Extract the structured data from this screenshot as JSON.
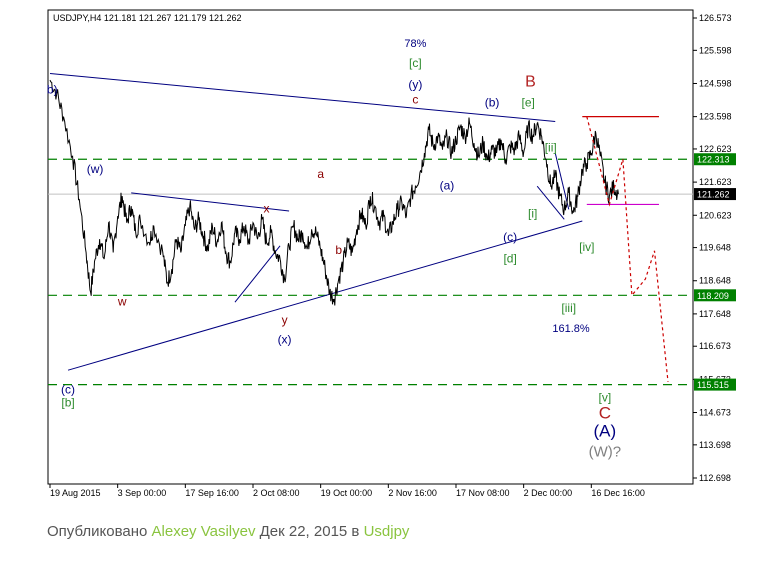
{
  "chart_data": {
    "type": "line",
    "title": "USDJPY,H4  121.181 121.267 121.179 121.262",
    "instrument": "USDJPY",
    "timeframe": "H4",
    "ohlc": {
      "open": 121.181,
      "high": 121.267,
      "low": 121.179,
      "close": 121.262
    },
    "ylim": [
      112.698,
      126.573
    ],
    "y_ticks": [
      "126.573",
      "125.598",
      "124.598",
      "123.598",
      "122.623",
      "121.623",
      "120.623",
      "119.648",
      "118.648",
      "117.648",
      "116.673",
      "115.673",
      "114.673",
      "113.698",
      "112.698"
    ],
    "x_ticks": [
      "19 Aug 2015",
      "3 Sep 00:00",
      "17 Sep 16:00",
      "2 Oct 08:00",
      "19 Oct 00:00",
      "2 Nov 16:00",
      "17 Nov 08:00",
      "2 Dec 00:00",
      "16 Dec 16:00"
    ],
    "current_price": "121.262",
    "levels": [
      {
        "label": "122.313",
        "value": 122.313
      },
      {
        "label": "118.209",
        "value": 118.209
      },
      {
        "label": "115.515",
        "value": 115.515
      }
    ],
    "series": [
      {
        "values": [
          [
            0,
            124.7
          ],
          [
            1.5,
            124.3
          ],
          [
            3,
            123.6
          ],
          [
            5,
            122.4
          ],
          [
            6.5,
            121.1
          ],
          [
            8,
            119.5
          ],
          [
            9,
            118.3
          ],
          [
            10,
            119.3
          ],
          [
            11,
            119.9
          ],
          [
            12,
            119.3
          ],
          [
            13,
            120.4
          ],
          [
            14,
            119.5
          ],
          [
            15,
            120.6
          ],
          [
            16,
            121.2
          ],
          [
            17,
            120.4
          ],
          [
            18,
            120.9
          ],
          [
            19,
            120.1
          ],
          [
            20,
            120.5
          ],
          [
            22,
            119.8
          ],
          [
            23,
            120.3
          ],
          [
            25,
            119.5
          ],
          [
            26,
            118.6
          ],
          [
            27,
            119.0
          ],
          [
            28,
            119.9
          ],
          [
            29,
            119.5
          ],
          [
            30,
            120.3
          ],
          [
            31,
            120.9
          ],
          [
            32,
            120.2
          ],
          [
            33,
            120.5
          ],
          [
            34,
            120.0
          ],
          [
            35,
            119.6
          ],
          [
            36,
            120.3
          ],
          [
            37,
            119.8
          ],
          [
            38,
            120.4
          ],
          [
            39,
            119.5
          ],
          [
            40,
            119.2
          ],
          [
            41,
            120.1
          ],
          [
            42,
            119.9
          ],
          [
            43,
            120.3
          ],
          [
            44,
            119.8
          ],
          [
            45,
            120.4
          ],
          [
            46,
            119.9
          ],
          [
            47,
            120.5
          ],
          [
            48,
            119.8
          ],
          [
            49,
            120.1
          ],
          [
            50,
            119.5
          ],
          [
            51,
            119.3
          ],
          [
            52,
            118.7
          ],
          [
            53,
            119.7
          ],
          [
            54,
            120.3
          ],
          [
            55,
            119.9
          ],
          [
            56,
            120.1
          ],
          [
            57,
            119.6
          ],
          [
            58,
            120.2
          ],
          [
            59,
            120.1
          ],
          [
            60,
            119.6
          ],
          [
            61,
            119.0
          ],
          [
            62,
            118.3
          ],
          [
            63,
            118.1
          ],
          [
            64,
            118.7
          ],
          [
            65,
            119.2
          ],
          [
            66,
            119.8
          ],
          [
            67,
            119.5
          ],
          [
            68,
            120.2
          ],
          [
            69,
            120.7
          ],
          [
            70,
            120.3
          ],
          [
            71,
            121.2
          ],
          [
            72,
            120.9
          ],
          [
            73,
            120.4
          ],
          [
            74,
            120.6
          ],
          [
            75,
            120.0
          ],
          [
            76,
            120.4
          ],
          [
            77,
            120.8
          ],
          [
            78,
            121.0
          ],
          [
            79,
            120.6
          ],
          [
            80,
            121.2
          ],
          [
            81,
            121.5
          ],
          [
            82,
            121.9
          ],
          [
            83,
            122.5
          ],
          [
            84,
            123.2
          ],
          [
            85,
            122.7
          ],
          [
            86,
            123.0
          ],
          [
            87,
            122.6
          ],
          [
            88,
            123.0
          ],
          [
            89,
            122.5
          ],
          [
            90,
            122.9
          ],
          [
            91,
            123.3
          ],
          [
            92,
            123.0
          ],
          [
            93,
            123.4
          ],
          [
            94,
            122.8
          ],
          [
            95,
            122.4
          ],
          [
            96,
            122.8
          ],
          [
            97,
            122.3
          ],
          [
            98,
            122.6
          ],
          [
            99,
            122.5
          ],
          [
            100,
            122.9
          ],
          [
            101,
            122.3
          ],
          [
            102,
            122.7
          ],
          [
            103,
            122.6
          ],
          [
            104,
            123.0
          ],
          [
            105,
            122.5
          ],
          [
            106,
            123.3
          ],
          [
            107,
            123.0
          ],
          [
            108,
            123.4
          ],
          [
            109,
            123.0
          ],
          [
            110,
            122.3
          ],
          [
            111,
            121.5
          ],
          [
            112,
            121.8
          ],
          [
            113,
            121.2
          ],
          [
            114,
            120.8
          ],
          [
            115,
            121.3
          ],
          [
            116,
            120.7
          ],
          [
            117,
            121.2
          ],
          [
            118,
            122.0
          ],
          [
            119,
            122.2
          ],
          [
            120,
            122.5
          ],
          [
            121,
            123.1
          ],
          [
            122,
            122.4
          ],
          [
            123,
            121.6
          ],
          [
            124,
            121.2
          ],
          [
            125,
            121.5
          ],
          [
            126,
            121.262
          ]
        ]
      }
    ],
    "trend_lines": [
      {
        "from": [
          0,
          124.9
        ],
        "to": [
          112,
          123.45
        ]
      },
      {
        "from": [
          4,
          115.95
        ],
        "to": [
          118,
          120.45
        ]
      },
      {
        "from": [
          18,
          121.3
        ],
        "to": [
          53,
          120.75
        ]
      },
      {
        "from": [
          41,
          118.0
        ],
        "to": [
          51,
          119.7
        ]
      },
      {
        "from": [
          108,
          121.5
        ],
        "to": [
          114,
          120.5
        ]
      },
      {
        "from": [
          112,
          122.5
        ],
        "to": [
          115,
          120.8
        ]
      }
    ],
    "hlines": [
      {
        "from": [
          118,
          123.598
        ],
        "to": [
          135,
          123.598
        ],
        "color": "#cc0000"
      },
      {
        "from": [
          119,
          120.95
        ],
        "to": [
          135,
          120.95
        ],
        "color": "#cc00cc"
      }
    ],
    "projection": [
      [
        119,
        123.598
      ],
      [
        124,
        120.95
      ],
      [
        127,
        122.313
      ],
      [
        129,
        118.209
      ],
      [
        132,
        118.7
      ],
      [
        134,
        119.55
      ],
      [
        137,
        115.6
      ]
    ],
    "annotations": [
      {
        "text": "b)",
        "x": 0.5,
        "y": 124.3,
        "color": "#000080",
        "size": 12
      },
      {
        "text": "(w)",
        "x": 10,
        "y": 121.9,
        "color": "#000080",
        "size": 12
      },
      {
        "text": "w",
        "x": 16,
        "y": 117.9,
        "color": "#8b0000",
        "size": 12
      },
      {
        "text": "x",
        "x": 48,
        "y": 120.7,
        "color": "#8b0000",
        "size": 12
      },
      {
        "text": "y",
        "x": 52,
        "y": 117.35,
        "color": "#8b0000",
        "size": 12
      },
      {
        "text": "(x)",
        "x": 52,
        "y": 116.75,
        "color": "#000080",
        "size": 12
      },
      {
        "text": "a",
        "x": 60,
        "y": 121.75,
        "color": "#8b0000",
        "size": 12
      },
      {
        "text": "b",
        "x": 64,
        "y": 119.45,
        "color": "#8b0000",
        "size": 12
      },
      {
        "text": "78%",
        "x": 81,
        "y": 125.7,
        "color": "#000080",
        "size": 11
      },
      {
        "text": "[c]",
        "x": 81,
        "y": 125.1,
        "color": "#2e8b2e",
        "size": 12
      },
      {
        "text": "(y)",
        "x": 81,
        "y": 124.45,
        "color": "#000080",
        "size": 12
      },
      {
        "text": "c",
        "x": 81,
        "y": 124.0,
        "color": "#8b0000",
        "size": 12
      },
      {
        "text": "(a)",
        "x": 88,
        "y": 121.4,
        "color": "#000080",
        "size": 12
      },
      {
        "text": "(b)",
        "x": 98,
        "y": 123.9,
        "color": "#000080",
        "size": 12
      },
      {
        "text": "(c)",
        "x": 102,
        "y": 119.85,
        "color": "#000080",
        "size": 12
      },
      {
        "text": "[d]",
        "x": 102,
        "y": 119.2,
        "color": "#2e8b2e",
        "size": 12
      },
      {
        "text": "B",
        "x": 106.5,
        "y": 124.5,
        "color": "#b22222",
        "size": 16
      },
      {
        "text": "[e]",
        "x": 106,
        "y": 123.9,
        "color": "#2e8b2e",
        "size": 12
      },
      {
        "text": "[i]",
        "x": 107,
        "y": 120.55,
        "color": "#2e8b2e",
        "size": 12
      },
      {
        "text": "[ii]",
        "x": 111,
        "y": 122.55,
        "color": "#2e8b2e",
        "size": 12
      },
      {
        "text": "[iii]",
        "x": 115,
        "y": 117.7,
        "color": "#2e8b2e",
        "size": 12
      },
      {
        "text": "161.8%",
        "x": 115.5,
        "y": 117.1,
        "color": "#000080",
        "size": 11
      },
      {
        "text": "[iv]",
        "x": 119,
        "y": 119.55,
        "color": "#2e8b2e",
        "size": 12
      },
      {
        "text": "(c)",
        "x": 4,
        "y": 115.25,
        "color": "#000080",
        "size": 12
      },
      {
        "text": "[b]",
        "x": 4,
        "y": 114.85,
        "color": "#2e8b2e",
        "size": 12
      },
      {
        "text": "[v]",
        "x": 123,
        "y": 115.0,
        "color": "#2e8b2e",
        "size": 12
      },
      {
        "text": "C",
        "x": 123,
        "y": 114.5,
        "color": "#b22222",
        "size": 17
      },
      {
        "text": "(A)",
        "x": 123,
        "y": 113.95,
        "color": "#000080",
        "size": 17
      },
      {
        "text": "(W)?",
        "x": 123,
        "y": 113.35,
        "color": "#808080",
        "size": 15
      }
    ],
    "grid": false,
    "xlabel": "",
    "ylabel": ""
  },
  "caption": {
    "prefix": "Опубликовано ",
    "author": "Alexey Vasilyev",
    "middle": " Дек 22, 2015 в ",
    "instrument_link": "Usdjpy"
  },
  "colors": {
    "price_line": "#000000",
    "trend_lines": "#000080",
    "levels": "#008000",
    "level_badge": "#008000",
    "current_badge": "#000000",
    "projection": "#cc0000",
    "caption_highlight": "#8ac43f"
  }
}
